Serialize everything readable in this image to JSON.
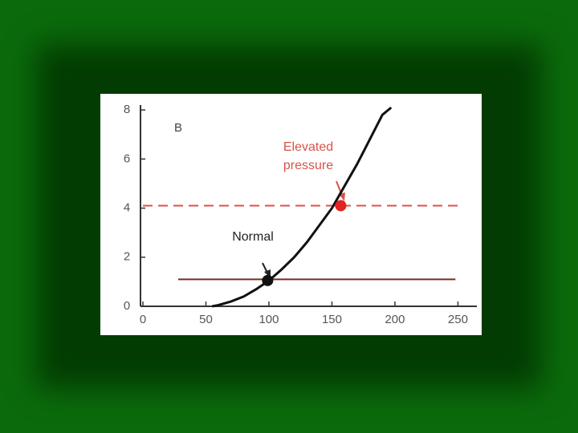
{
  "chart_data": {
    "type": "line",
    "panel_label": "B",
    "x": [
      55,
      60,
      70,
      80,
      90,
      100,
      110,
      120,
      130,
      140,
      150,
      160,
      170,
      180,
      190,
      197
    ],
    "values": [
      0,
      0.05,
      0.2,
      0.4,
      0.7,
      1.05,
      1.5,
      2.0,
      2.6,
      3.3,
      4.0,
      4.9,
      5.8,
      6.8,
      7.8,
      8.1
    ],
    "color": "#111111",
    "xlim": [
      0,
      265
    ],
    "ylim": [
      0,
      8.2
    ],
    "xticks": [
      0,
      50,
      100,
      150,
      200,
      250
    ],
    "yticks": [
      0,
      2,
      4,
      6,
      8
    ],
    "reference_lines": [
      {
        "y": 4.1,
        "x": [
          0,
          250
        ],
        "style": "dashed",
        "color": "#d9534a"
      },
      {
        "y": 1.1,
        "x": [
          28,
          248
        ],
        "style": "solid",
        "color": "#7a2a20"
      }
    ],
    "points": [
      {
        "x": 157,
        "y": 4.1,
        "color": "#e32222",
        "label": [
          "Elevated",
          "pressure"
        ],
        "label_color": "#d9534a"
      },
      {
        "x": 99,
        "y": 1.05,
        "color": "#111111",
        "label": [
          "Normal"
        ],
        "label_color": "#222222"
      }
    ]
  }
}
